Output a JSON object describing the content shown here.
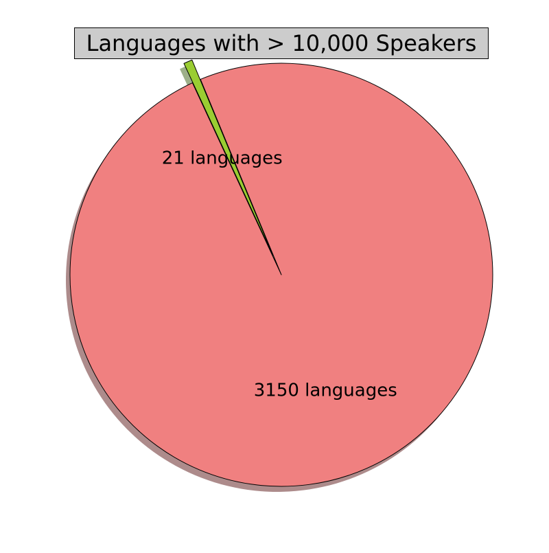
{
  "chart_data": {
    "type": "pie",
    "title": "Languages with > 10,000 Speakers",
    "slices": [
      {
        "value": 21,
        "label": "21 languages",
        "color": "#9acd32",
        "exploded": true
      },
      {
        "value": 3150,
        "label": "3150 languages",
        "color": "#f08080",
        "exploded": false
      }
    ],
    "shadow": true,
    "title_background": "#cccccc"
  }
}
